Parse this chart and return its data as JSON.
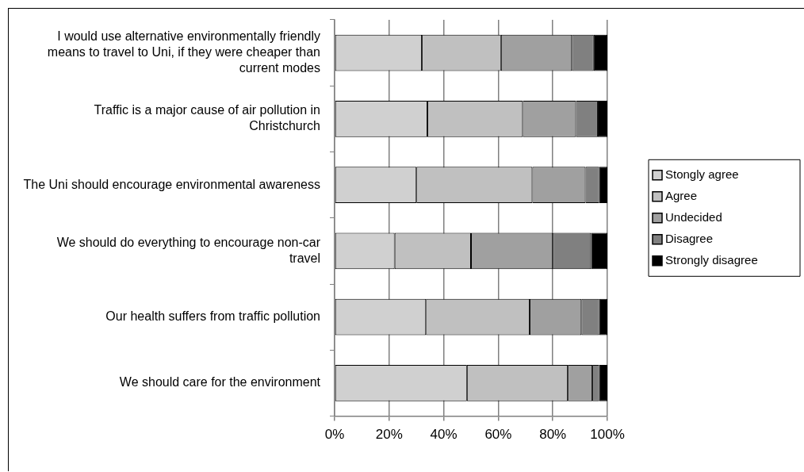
{
  "chart_data": {
    "type": "bar",
    "orientation": "horizontal",
    "stacked": true,
    "categories": [
      "I would use alternative environmentally friendly means to travel to Uni, if they were cheaper than current modes",
      "Traffic is a major cause of air pollution in Christchurch",
      "The Uni should encourage environmental awareness",
      "We should do everything to encourage non-car travel",
      "Our health suffers from traffic pollution",
      "We should care for the environment"
    ],
    "series": [
      {
        "name": "Stongly agree",
        "color": "#d0d0d0",
        "values": [
          32,
          34,
          30,
          22,
          33.5,
          48.5
        ]
      },
      {
        "name": "Agree",
        "color": "#c0c0c0",
        "values": [
          29,
          35,
          42.5,
          28,
          38,
          37
        ]
      },
      {
        "name": "Undecided",
        "color": "#a0a0a0",
        "values": [
          26,
          19.5,
          19.5,
          30,
          19,
          9
        ]
      },
      {
        "name": "Disagree",
        "color": "#808080",
        "values": [
          8,
          8,
          5,
          14,
          6.5,
          2.5
        ]
      },
      {
        "name": "Strongly disagree",
        "color": "#000000",
        "values": [
          5,
          3.5,
          3,
          6,
          3,
          3
        ]
      }
    ],
    "xlim": [
      0,
      100
    ],
    "xticks": [
      {
        "value": 0,
        "label": "0%"
      },
      {
        "value": 20,
        "label": "20%"
      },
      {
        "value": 40,
        "label": "40%"
      },
      {
        "value": 60,
        "label": "60%"
      },
      {
        "value": 80,
        "label": "80%"
      },
      {
        "value": 100,
        "label": "100%"
      }
    ],
    "grid": "x",
    "legend": "right"
  }
}
